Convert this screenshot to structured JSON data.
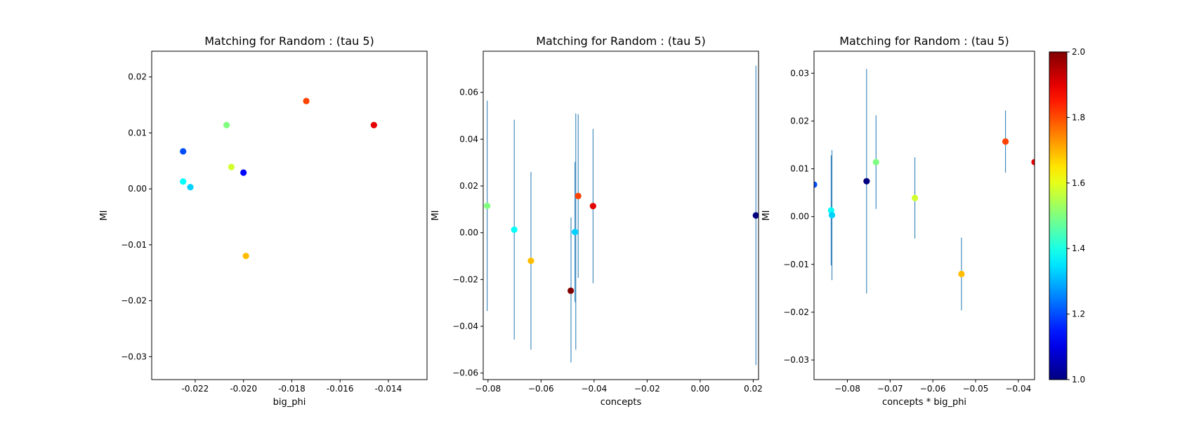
{
  "chart_data": [
    {
      "type": "scatter",
      "title": "Matching for Random : (tau 5)",
      "xlabel": "big_phi",
      "ylabel": "MI",
      "xlim": [
        -0.0238,
        -0.0124
      ],
      "ylim": [
        -0.0341,
        0.0246
      ],
      "xticks": [
        "-0.022",
        "-0.020",
        "-0.018",
        "-0.016",
        "-0.014"
      ],
      "xtick_values": [
        -0.022,
        -0.02,
        -0.018,
        -0.016,
        -0.014
      ],
      "yticks": [
        "−0.03",
        "−0.02",
        "−0.01",
        "0.00",
        "0.01",
        "0.02"
      ],
      "ytick_values": [
        -0.03,
        -0.02,
        -0.01,
        0.0,
        0.01,
        0.02
      ],
      "grid": false,
      "points": [
        {
          "x": -0.0225,
          "y": 0.0067,
          "c": 1.2
        },
        {
          "x": -0.02,
          "y": 0.0029,
          "c": 1.13
        },
        {
          "x": -0.0225,
          "y": 0.0013,
          "c": 1.38
        },
        {
          "x": -0.0222,
          "y": 0.0003,
          "c": 1.33
        },
        {
          "x": -0.0207,
          "y": 0.0114,
          "c": 1.5
        },
        {
          "x": -0.0205,
          "y": 0.0039,
          "c": 1.58
        },
        {
          "x": -0.0199,
          "y": -0.012,
          "c": 1.69
        },
        {
          "x": -0.0174,
          "y": 0.0157,
          "c": 1.81
        },
        {
          "x": -0.0146,
          "y": 0.0114,
          "c": 1.9
        }
      ]
    },
    {
      "type": "scatter",
      "title": "Matching for Random : (tau 5)",
      "xlabel": "concepts",
      "ylabel": "MI",
      "xlim": [
        -0.0818,
        0.022
      ],
      "ylim": [
        -0.0628,
        0.0776
      ],
      "xticks": [
        "−0.08",
        "−0.06",
        "−0.04",
        "−0.02",
        "0.00",
        "0.02"
      ],
      "xtick_values": [
        -0.08,
        -0.06,
        -0.04,
        -0.02,
        0.0,
        0.02
      ],
      "yticks": [
        "−0.06",
        "−0.04",
        "−0.02",
        "0.00",
        "0.02",
        "0.04",
        "0.06"
      ],
      "ytick_values": [
        -0.06,
        -0.04,
        -0.02,
        0.0,
        0.02,
        0.04,
        0.06
      ],
      "grid": false,
      "points": [
        {
          "x": -0.0803,
          "y": 0.0115,
          "err": 0.045,
          "c": 1.5
        },
        {
          "x": -0.0701,
          "y": 0.0013,
          "err": 0.047,
          "c": 1.38
        },
        {
          "x": -0.0638,
          "y": -0.012,
          "err": 0.038,
          "c": 1.69
        },
        {
          "x": -0.0488,
          "y": -0.0248,
          "err": 0.0,
          "c": 2.0
        },
        {
          "x": -0.0472,
          "y": 0.0003,
          "err": 0.03,
          "c": 1.33
        },
        {
          "x": -0.046,
          "y": 0.0157,
          "err": 0.035,
          "c": 1.81
        },
        {
          "x": -0.0404,
          "y": 0.0114,
          "err": 0.033,
          "c": 1.9
        },
        {
          "x": 0.021,
          "y": 0.0074,
          "err": 0.064,
          "c": 1.0
        }
      ],
      "extra_errorbars": [
        {
          "x": -0.0487,
          "low": -0.0555,
          "high": 0.0065
        },
        {
          "x": -0.0469,
          "low": -0.05,
          "high": 0.051
        }
      ]
    },
    {
      "type": "scatter",
      "title": "Matching for Random : (tau 5)",
      "xlabel": "concepts * big_phi",
      "ylabel": "MI",
      "xlim": [
        -0.0878,
        -0.0362
      ],
      "ylim": [
        -0.0341,
        0.0346
      ],
      "xticks": [
        "−0.08",
        "−0.07",
        "−0.06",
        "−0.05",
        "−0.04"
      ],
      "xtick_values": [
        -0.08,
        -0.07,
        -0.06,
        -0.05,
        -0.04
      ],
      "yticks": [
        "−0.03",
        "−0.02",
        "−0.01",
        "0.00",
        "0.01",
        "0.02",
        "0.03"
      ],
      "ytick_values": [
        -0.03,
        -0.02,
        -0.01,
        0.0,
        0.01,
        0.02,
        0.03
      ],
      "grid": false,
      "points": [
        {
          "x": -0.0878,
          "y": 0.0067,
          "err": 0.0,
          "c": 1.2
        },
        {
          "x": -0.0838,
          "y": 0.0013,
          "err": 0.0115,
          "c": 1.38
        },
        {
          "x": -0.0836,
          "y": 0.0003,
          "err": 0.0136,
          "c": 1.33
        },
        {
          "x": -0.0755,
          "y": 0.0074,
          "err": 0.0235,
          "c": 1.0
        },
        {
          "x": -0.0733,
          "y": 0.0114,
          "err": 0.0098,
          "c": 1.5
        },
        {
          "x": -0.0642,
          "y": 0.0039,
          "err": 0.0085,
          "c": 1.58
        },
        {
          "x": -0.0533,
          "y": -0.012,
          "err": 0.0076,
          "c": 1.69
        },
        {
          "x": -0.043,
          "y": 0.0157,
          "err": 0.0065,
          "c": 1.81
        },
        {
          "x": -0.0362,
          "y": 0.0114,
          "err": 0.0,
          "c": 1.9
        }
      ]
    }
  ],
  "colorbar": {
    "min": 1.0,
    "max": 2.0,
    "ticks": [
      "1.0",
      "1.2",
      "1.4",
      "1.6",
      "1.8",
      "2.0"
    ],
    "tick_values": [
      1.0,
      1.2,
      1.4,
      1.6,
      1.8,
      2.0
    ],
    "colormap": "jet"
  },
  "errorbar_color": "#1f77b4"
}
